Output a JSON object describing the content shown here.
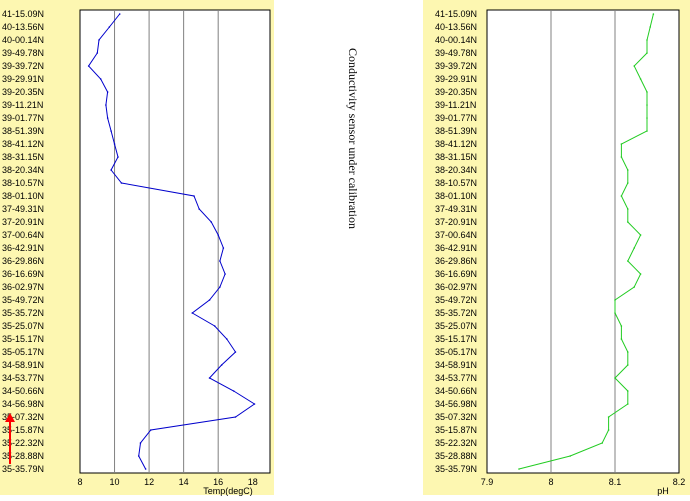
{
  "annotation": "Conductivity sensor under calibration",
  "arrow_color": "#ff0000",
  "chart_data": [
    {
      "type": "line",
      "xlabel": "Temp(degC)",
      "ylabel": "",
      "title": "",
      "xlim": [
        8,
        19
      ],
      "x_ticks": [
        "8",
        "10",
        "12",
        "14",
        "16",
        "18"
      ],
      "x_tick_values": [
        8,
        10,
        12,
        14,
        16,
        18
      ],
      "grid": "vertical",
      "line_color": "#0000cc",
      "background": "#fdf7b1",
      "y_categories": [
        "41-15.09N",
        "40-13.56N",
        "40-00.14N",
        "39-49.78N",
        "39-39.72N",
        "39-29.91N",
        "39-20.35N",
        "39-11.21N",
        "39-01.77N",
        "38-51.39N",
        "38-41.12N",
        "38-31.15N",
        "38-20.34N",
        "38-10.57N",
        "38-01.10N",
        "37-49.31N",
        "37-20.91N",
        "37-00.64N",
        "36-42.91N",
        "36-29.86N",
        "36-16.69N",
        "36-02.97N",
        "35-49.72N",
        "35-35.72N",
        "35-25.07N",
        "35-15.17N",
        "35-05.17N",
        "34-58.91N",
        "34-53.77N",
        "34-50.66N",
        "34-56.98N",
        "35-07.32N",
        "35-15.87N",
        "35-22.32N",
        "35-28.88N",
        "35-35.79N"
      ],
      "series": [
        {
          "x": [
            10.3,
            9.7,
            9.1,
            9.0,
            8.5,
            9.2,
            9.6,
            9.5,
            9.6,
            9.8,
            10.0,
            10.2,
            9.8,
            10.4,
            14.6,
            14.9,
            15.6,
            16.0,
            16.3,
            16.1,
            16.4,
            16.1,
            15.5,
            14.5,
            15.8,
            16.5,
            17.0,
            16.2,
            15.5,
            16.9,
            18.1,
            17.0,
            12.1,
            11.5,
            11.4,
            11.8
          ],
          "y": [
            0,
            1,
            2,
            3,
            4,
            5,
            6,
            7,
            8,
            9,
            10,
            11,
            12,
            13,
            14,
            15,
            16,
            17,
            18,
            19,
            20,
            21,
            22,
            23,
            24,
            25,
            26,
            27,
            28,
            29,
            30,
            31,
            32,
            33,
            34,
            35
          ]
        }
      ]
    },
    {
      "type": "line",
      "xlabel": "pH",
      "ylabel": "",
      "title": "",
      "xlim": [
        7.9,
        8.2
      ],
      "x_ticks": [
        "7.9",
        "8",
        "8.1",
        "8.2"
      ],
      "x_tick_values": [
        7.9,
        8.0,
        8.1,
        8.2
      ],
      "grid": "vertical",
      "line_color": "#22cc22",
      "background": "#fdf7b1",
      "y_categories": [
        "41-15.09N",
        "40-13.56N",
        "40-00.14N",
        "39-49.78N",
        "39-39.72N",
        "39-29.91N",
        "39-20.35N",
        "39-11.21N",
        "39-01.77N",
        "38-51.39N",
        "38-41.12N",
        "38-31.15N",
        "38-20.34N",
        "38-10.57N",
        "38-01.10N",
        "37-49.31N",
        "37-20.91N",
        "37-00.64N",
        "36-42.91N",
        "36-29.86N",
        "36-16.69N",
        "36-02.97N",
        "35-49.72N",
        "35-35.72N",
        "35-25.07N",
        "35-15.17N",
        "35-05.17N",
        "34-58.91N",
        "34-53.77N",
        "34-50.66N",
        "34-56.98N",
        "35-07.32N",
        "35-15.87N",
        "35-22.32N",
        "35-28.88N",
        "35-35.79N"
      ],
      "series": [
        {
          "x": [
            8.16,
            8.155,
            8.15,
            8.15,
            8.13,
            8.14,
            8.15,
            8.15,
            8.15,
            8.15,
            8.11,
            8.11,
            8.12,
            8.12,
            8.11,
            8.12,
            8.12,
            8.14,
            8.13,
            8.12,
            8.14,
            8.13,
            8.1,
            8.1,
            8.11,
            8.11,
            8.12,
            8.12,
            8.1,
            8.12,
            8.12,
            8.09,
            8.09,
            8.08,
            8.03,
            7.95
          ],
          "y": [
            0,
            1,
            2,
            3,
            4,
            5,
            6,
            7,
            8,
            9,
            10,
            11,
            12,
            13,
            14,
            15,
            16,
            17,
            18,
            19,
            20,
            21,
            22,
            23,
            24,
            25,
            26,
            27,
            28,
            29,
            30,
            31,
            32,
            33,
            34,
            35
          ]
        }
      ]
    }
  ]
}
